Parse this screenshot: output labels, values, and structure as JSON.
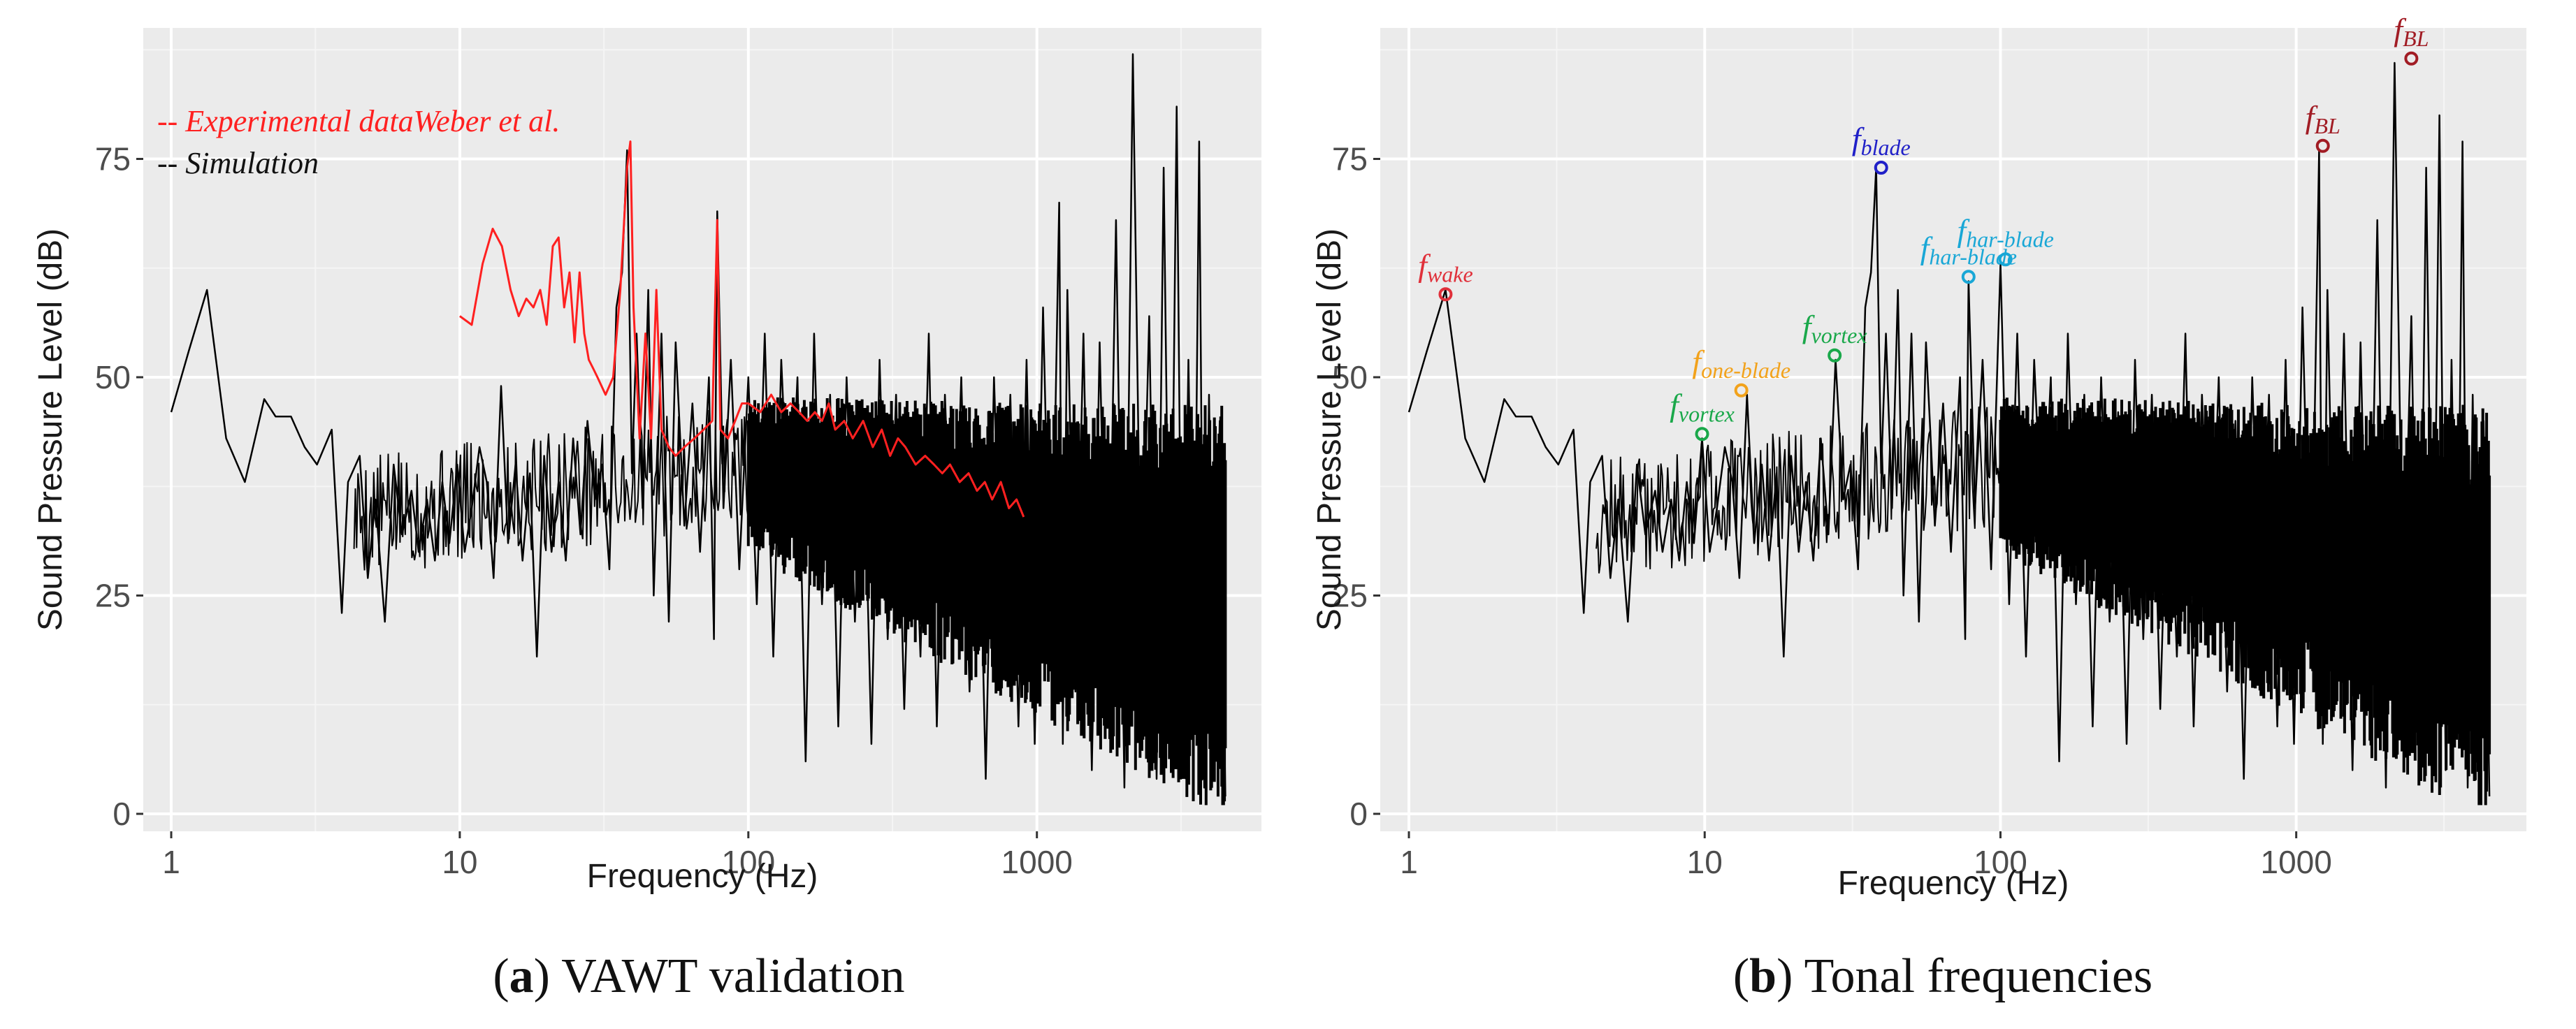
{
  "chart_data": [
    {
      "panel_id": "a",
      "type": "line",
      "caption_letter": "a",
      "caption_text": "VAWT validation",
      "xlabel": "Frequency (Hz)",
      "ylabel": "Sound Pressure Level (dB)",
      "xscale": "log10",
      "xlim": [
        0.8,
        6000
      ],
      "ylim": [
        -2,
        90
      ],
      "grid": true,
      "xticks": [
        {
          "value": 1,
          "label": "1"
        },
        {
          "value": 10,
          "label": "10"
        },
        {
          "value": 100,
          "label": "100"
        },
        {
          "value": 1000,
          "label": "1000"
        }
      ],
      "yticks": [
        {
          "value": 0,
          "label": "0"
        },
        {
          "value": 25,
          "label": "25"
        },
        {
          "value": 50,
          "label": "50"
        },
        {
          "value": 75,
          "label": "75"
        }
      ],
      "legend": {
        "position": "top-left",
        "entries": [
          {
            "text": "-- Experimental dataWeber et al.",
            "color": "#ff2020"
          },
          {
            "text": "-- Simulation",
            "color": "#111111"
          }
        ]
      },
      "series": [
        {
          "name": "Simulation",
          "color": "#000000",
          "x": [
            1,
            1.15,
            1.33,
            1.55,
            1.8,
            2.1,
            2.3,
            2.6,
            2.9,
            3.2,
            3.6,
            3.9,
            4.1,
            4.5,
            4.8,
            5.1,
            5.5,
            5.9,
            6.3,
            6.8,
            7.2,
            7.7,
            8.2,
            8.7,
            9.2,
            9.8,
            10.4,
            11,
            11.7,
            12.4,
            13.1,
            13.9,
            14.7,
            15.6,
            16.5,
            17.5,
            18.5,
            19.6,
            20.8,
            22,
            23.3,
            24.7,
            26.2,
            27.7,
            29.4,
            31.1,
            33,
            34.9,
            36.5,
            38,
            39.5,
            41,
            43,
            45,
            47,
            50,
            53,
            56,
            60,
            64,
            68,
            73,
            76,
            78,
            82,
            87,
            93,
            100,
            107,
            114,
            122,
            130,
            139,
            148,
            158,
            169,
            180,
            192,
            205,
            219,
            234,
            250,
            267,
            285,
            304,
            325,
            347,
            370,
            395,
            422,
            450,
            480,
            512,
            547,
            584,
            623,
            665,
            710,
            758,
            809,
            863,
            921,
            983,
            1050,
            1120,
            1195,
            1230,
            1275,
            1360,
            1450,
            1550,
            1650,
            1760,
            1880,
            2010,
            2150,
            2300,
            2450,
            2600,
            2750,
            2900,
            3050,
            3200,
            3350,
            3500,
            3650,
            3800,
            3950,
            4100,
            4300,
            4500
          ],
          "y": [
            46,
            53,
            60,
            43,
            38,
            47.5,
            45.5,
            45.5,
            42,
            40,
            44,
            23,
            38,
            41,
            27,
            36,
            22,
            40,
            32,
            37,
            30,
            36,
            29,
            38,
            31,
            40,
            30,
            35,
            42,
            38,
            27,
            49,
            31,
            40,
            29,
            39,
            18,
            41,
            30,
            38,
            29,
            43,
            32,
            45,
            36,
            40,
            28,
            58,
            62,
            76,
            39,
            55,
            35,
            60,
            25,
            55,
            22,
            54,
            33,
            47,
            30,
            50,
            20,
            69,
            35,
            52,
            28,
            50,
            24,
            55,
            18,
            52,
            30,
            50,
            6,
            55,
            24,
            48,
            10,
            50,
            22,
            46,
            8,
            52,
            20,
            48,
            12,
            45,
            18,
            55,
            10,
            48,
            22,
            50,
            14,
            45,
            4,
            50,
            20,
            48,
            10,
            52,
            8,
            58,
            18,
            70,
            8,
            60,
            14,
            55,
            5,
            54,
            12,
            68,
            3,
            87,
            20,
            57,
            4,
            74,
            12,
            81,
            5,
            52,
            14,
            77,
            3,
            48,
            10,
            45,
            2
          ],
          "description": "Dense noisy broadband spectrum; the band above ~100 Hz is rendered as a filled black envelope"
        },
        {
          "name": "Experimental data Weber et al.",
          "color": "#ff2020",
          "x": [
            10,
            11,
            12,
            13,
            14,
            15,
            16,
            17,
            18,
            19,
            20,
            21,
            22,
            23,
            24,
            25,
            26,
            27,
            28,
            29,
            30,
            32,
            34,
            36,
            38,
            39,
            40,
            42,
            44,
            46,
            48,
            50,
            53,
            56,
            60,
            65,
            70,
            75,
            78,
            80,
            85,
            90,
            95,
            100,
            110,
            120,
            130,
            140,
            150,
            160,
            170,
            180,
            190,
            200,
            215,
            230,
            250,
            270,
            290,
            310,
            330,
            350,
            380,
            410,
            440,
            470,
            500,
            540,
            580,
            620,
            660,
            700,
            750,
            800,
            850,
            900
          ],
          "y": [
            57,
            56,
            63,
            67,
            65,
            60,
            57,
            59,
            58,
            60,
            56,
            65,
            66,
            58,
            62,
            54,
            62,
            55,
            52,
            51,
            50,
            48,
            50,
            60,
            74,
            77,
            58,
            43,
            55,
            43,
            60,
            44,
            42,
            41,
            42,
            43,
            44,
            45,
            68,
            44,
            43,
            45,
            47,
            47,
            46,
            48,
            46,
            47,
            46,
            45,
            46,
            45,
            47,
            44,
            45,
            43,
            45,
            42,
            44,
            41,
            43,
            42,
            40,
            41,
            40,
            39,
            40,
            38,
            39,
            37,
            38,
            36,
            38,
            35,
            36,
            34
          ]
        }
      ]
    },
    {
      "panel_id": "b",
      "type": "line",
      "caption_letter": "b",
      "caption_text": "Tonal frequencies",
      "xlabel": "Frequency (Hz)",
      "ylabel": "Sound Pressure Level (dB)",
      "xscale": "log10",
      "xlim": [
        0.8,
        6000
      ],
      "ylim": [
        -2,
        90
      ],
      "grid": true,
      "xticks": [
        {
          "value": 1,
          "label": "1"
        },
        {
          "value": 10,
          "label": "10"
        },
        {
          "value": 100,
          "label": "100"
        },
        {
          "value": 1000,
          "label": "1000"
        }
      ],
      "yticks": [
        {
          "value": 0,
          "label": "0"
        },
        {
          "value": 25,
          "label": "25"
        },
        {
          "value": 50,
          "label": "50"
        },
        {
          "value": 75,
          "label": "75"
        }
      ],
      "series": [
        {
          "name": "Simulation",
          "color": "#000000",
          "x": [
            1,
            1.15,
            1.33,
            1.55,
            1.8,
            2.1,
            2.3,
            2.6,
            2.9,
            3.2,
            3.6,
            3.9,
            4.1,
            4.5,
            4.8,
            5.1,
            5.5,
            5.9,
            6.3,
            6.8,
            7.2,
            7.7,
            8.2,
            8.7,
            9.2,
            9.8,
            10.4,
            11,
            11.7,
            12.4,
            13.1,
            13.9,
            14.7,
            15.6,
            16.5,
            17.5,
            18.5,
            19.6,
            20.8,
            22,
            23.3,
            24.7,
            26.2,
            27.7,
            29.4,
            31.1,
            33,
            34.9,
            36.5,
            38,
            39.5,
            41,
            43,
            45,
            47,
            50,
            53,
            56,
            60,
            64,
            68,
            73,
            76,
            78,
            82,
            87,
            93,
            100,
            107,
            114,
            122,
            130,
            139,
            148,
            158,
            169,
            180,
            192,
            205,
            219,
            234,
            250,
            267,
            285,
            304,
            325,
            347,
            370,
            395,
            422,
            450,
            480,
            512,
            547,
            584,
            623,
            665,
            710,
            758,
            809,
            863,
            921,
            983,
            1050,
            1120,
            1195,
            1230,
            1275,
            1360,
            1450,
            1550,
            1650,
            1760,
            1880,
            2010,
            2150,
            2300,
            2450,
            2600,
            2750,
            2900,
            3050,
            3200,
            3350,
            3500,
            3650,
            3800,
            3950,
            4100,
            4300,
            4500
          ],
          "y": [
            46,
            53,
            60,
            43,
            38,
            47.5,
            45.5,
            45.5,
            42,
            40,
            44,
            23,
            38,
            41,
            27,
            36,
            22,
            40,
            32,
            37,
            30,
            36,
            29,
            38,
            31,
            43,
            30,
            35,
            42,
            38,
            27,
            48,
            31,
            40,
            29,
            39,
            18,
            41,
            30,
            38,
            29,
            43,
            32,
            52,
            36,
            40,
            28,
            58,
            62,
            74,
            39,
            55,
            35,
            60,
            25,
            55,
            22,
            54,
            33,
            47,
            30,
            50,
            20,
            61,
            35,
            52,
            28,
            63,
            24,
            55,
            18,
            52,
            30,
            50,
            6,
            55,
            24,
            48,
            10,
            50,
            22,
            46,
            8,
            52,
            20,
            48,
            12,
            45,
            18,
            55,
            10,
            48,
            22,
            50,
            14,
            45,
            4,
            50,
            20,
            48,
            10,
            52,
            8,
            58,
            18,
            76,
            8,
            60,
            14,
            55,
            5,
            54,
            12,
            68,
            3,
            86,
            20,
            57,
            4,
            74,
            12,
            80,
            5,
            52,
            14,
            77,
            3,
            48,
            10,
            45,
            2
          ],
          "description": "Dense noisy broadband spectrum; the band above ~100 Hz is rendered as a filled black envelope"
        }
      ],
      "annotations": [
        {
          "main": "f",
          "sub": "wake",
          "x": 1.33,
          "y": 59.5,
          "color": "#e0303a"
        },
        {
          "main": "f",
          "sub": "vortex",
          "x": 9.8,
          "y": 43.5,
          "color": "#1aa84a"
        },
        {
          "main": "f",
          "sub": "one-blade",
          "x": 13.3,
          "y": 48.5,
          "color": "#f2a21b"
        },
        {
          "main": "f",
          "sub": "vortex",
          "x": 27.5,
          "y": 52.5,
          "color": "#1aa84a"
        },
        {
          "main": "f",
          "sub": "blade",
          "x": 39.5,
          "y": 74,
          "color": "#2020c8"
        },
        {
          "main": "f",
          "sub": "har-blade",
          "x": 78,
          "y": 61.5,
          "color": "#19a7d6"
        },
        {
          "main": "f",
          "sub": "har-blade",
          "x": 104,
          "y": 63.5,
          "color": "#19a7d6"
        },
        {
          "main": "f",
          "sub": "BL",
          "x": 1230,
          "y": 76.5,
          "color": "#a11c24"
        },
        {
          "main": "f",
          "sub": "BL",
          "x": 2450,
          "y": 86.5,
          "color": "#a11c24"
        }
      ]
    }
  ]
}
